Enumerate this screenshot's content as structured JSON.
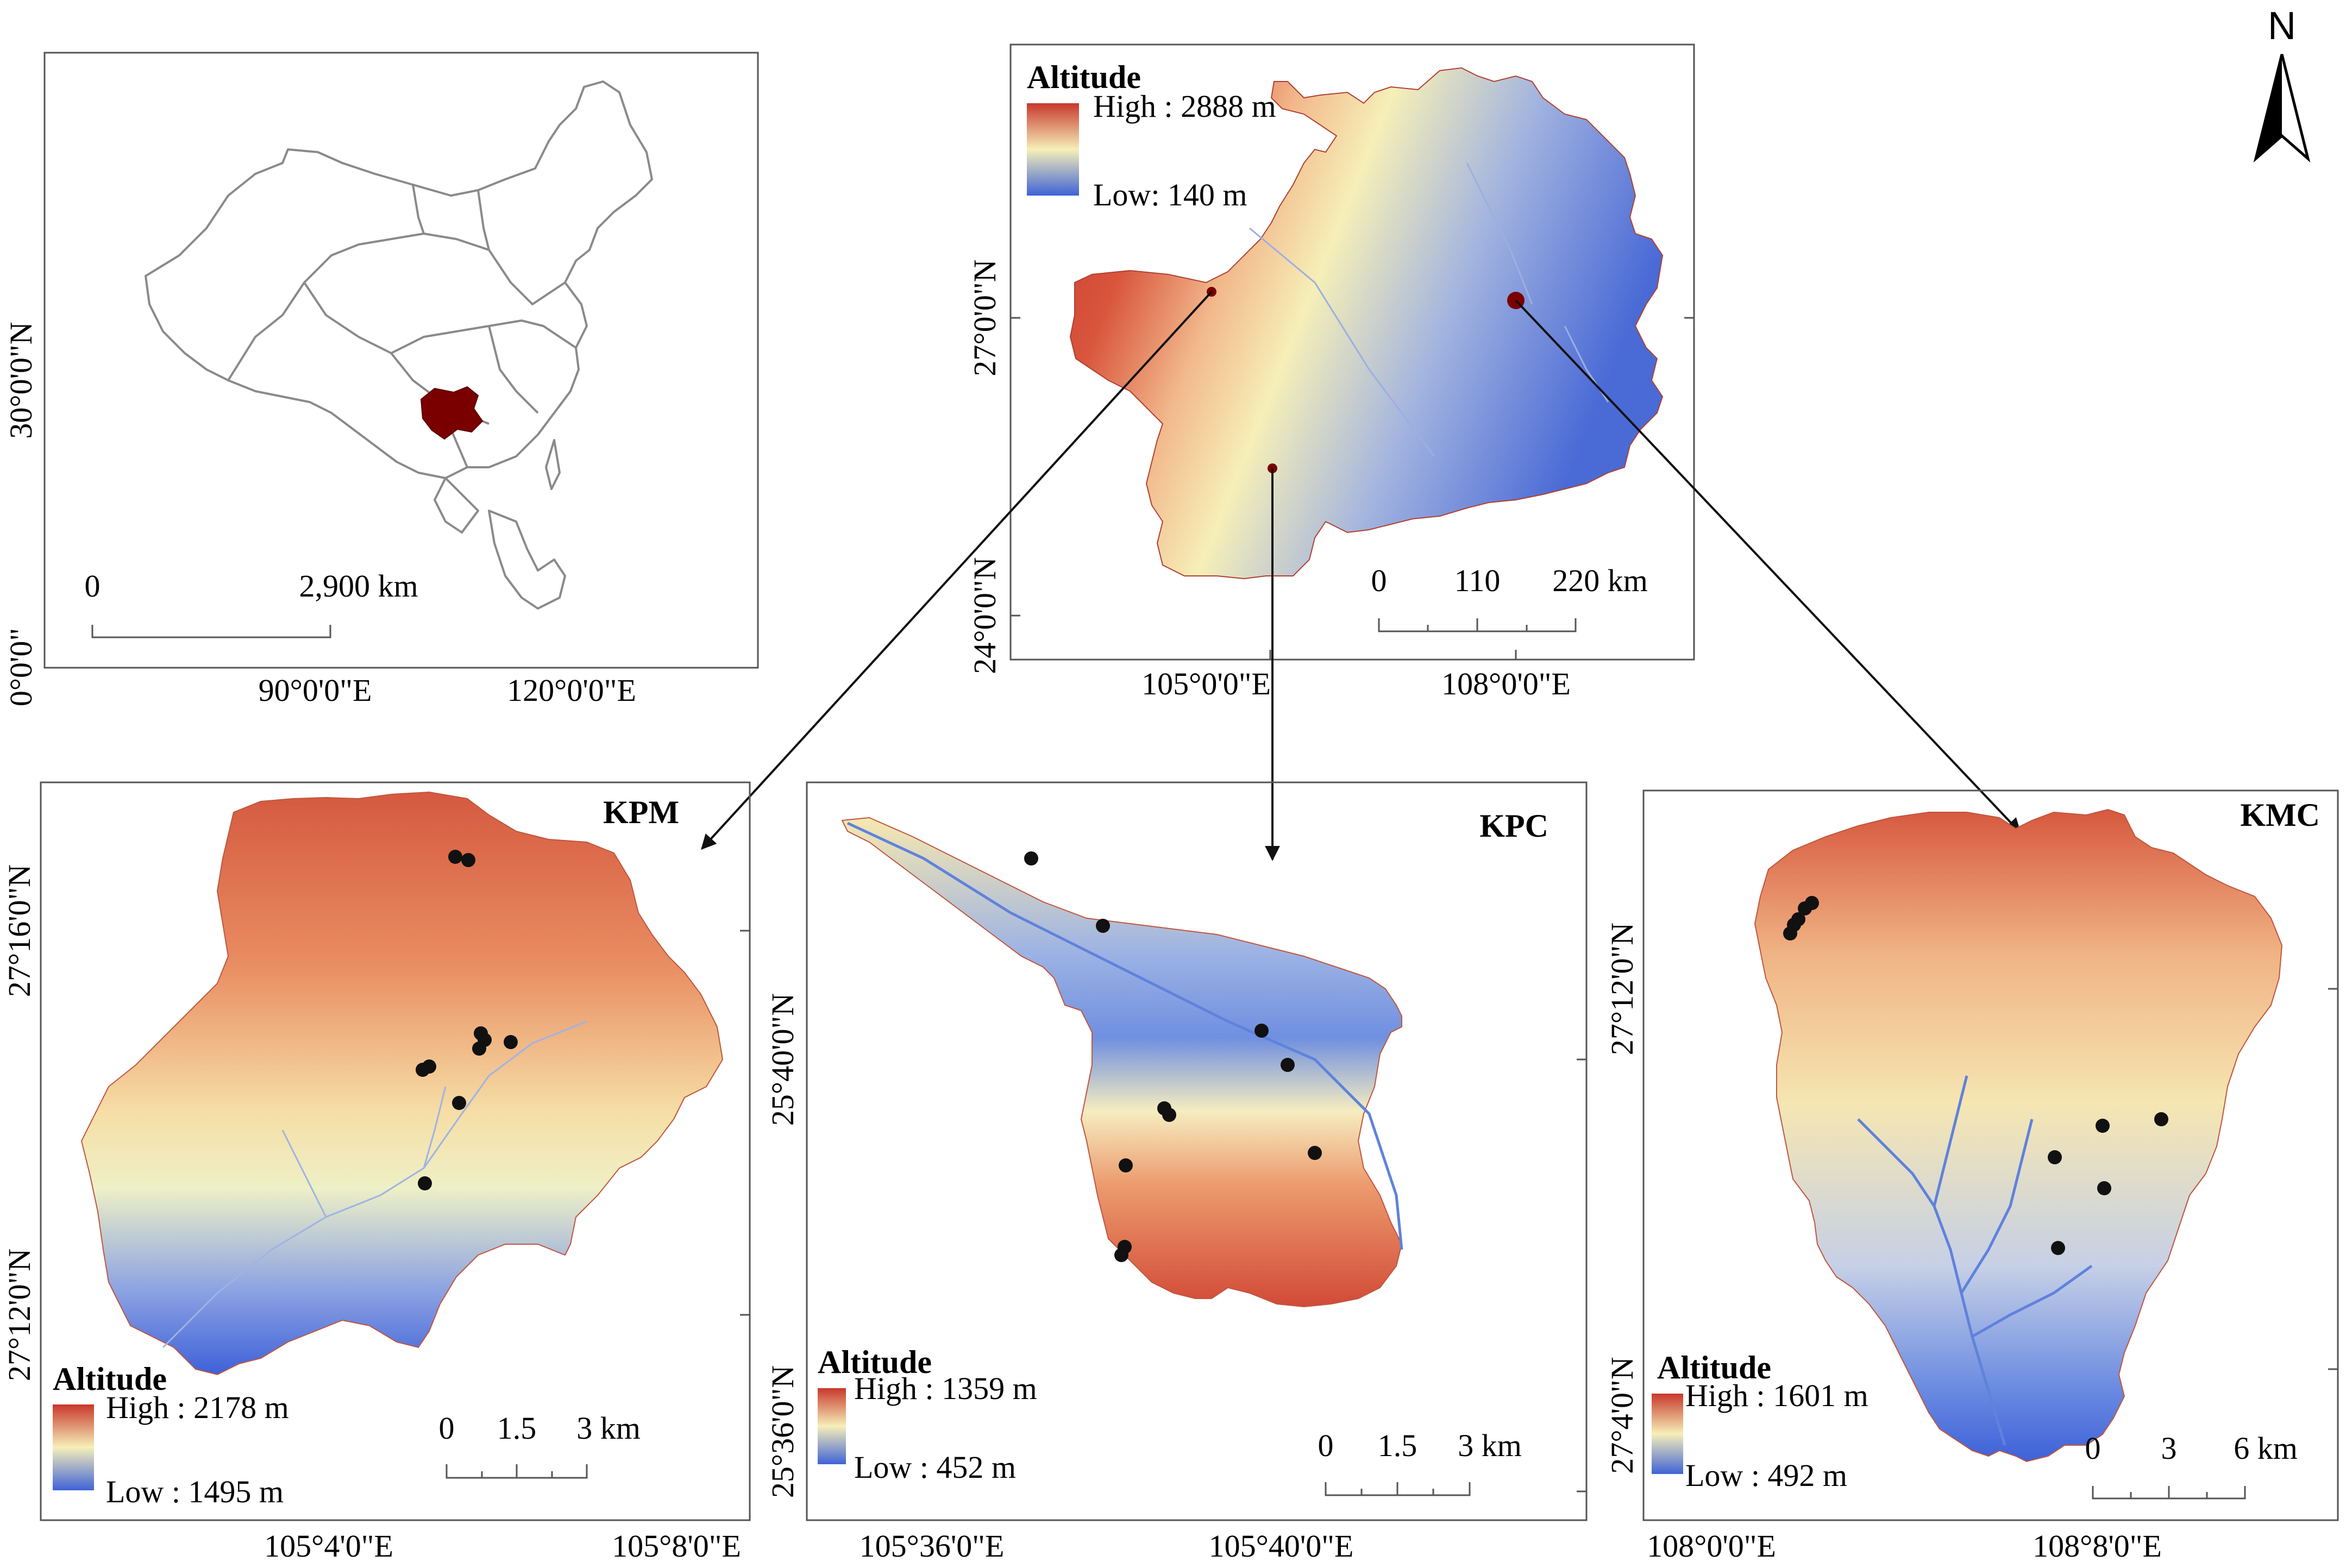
{
  "north_arrow": {
    "label": "N"
  },
  "colors": {
    "high": "#c8382c",
    "mid": "#f6efb8",
    "low": "#3f63d6",
    "study_area": "#7a0000"
  },
  "china_map": {
    "y_label_1": "30°0'0\"N",
    "y_label_2": "0°0'0\"",
    "x_label_1": "90°0'0\"E",
    "x_label_2": "120°0'0\"E",
    "scale": {
      "start": "0",
      "end": "2,900 km"
    },
    "highlight_icon": "guizhou-province-highlight"
  },
  "province_map": {
    "legend": {
      "title": "Altitude",
      "high": "High : 2888 m",
      "low": "Low: 140 m"
    },
    "y_label_1": "27°0'0\"N",
    "y_label_2": "24°0'0\"N",
    "x_label_1": "105°0'0\"E",
    "x_label_2": "108°0'0\"E",
    "scale": {
      "start": "0",
      "mid": "110",
      "end": "220 km"
    }
  },
  "panels": [
    {
      "name": "KPM",
      "legend": {
        "title": "Altitude",
        "high": "High : 2178 m",
        "low": "Low : 1495 m"
      },
      "y_label_1": "27°16'0\"N",
      "y_label_2": "27°12'0\"N",
      "x_label_1": "105°4'0\"E",
      "x_label_2": "105°8'0\"E",
      "scale": {
        "start": "0",
        "mid": "1.5",
        "end": "3 km"
      },
      "sample_points": 10
    },
    {
      "name": "KPC",
      "legend": {
        "title": "Altitude",
        "high": "High : 1359 m",
        "low": "Low : 452 m"
      },
      "y_label_1": "25°40'0\"N",
      "y_label_2": "25°36'0\"N",
      "x_label_1": "105°36'0\"E",
      "x_label_2": "105°40'0\"E",
      "scale": {
        "start": "0",
        "mid": "1.5",
        "end": "3 km"
      },
      "sample_points": 10
    },
    {
      "name": "KMC",
      "legend": {
        "title": "Altitude",
        "high": "High : 1601 m",
        "low": "Low : 492 m"
      },
      "y_label_1": "27°12'0\"N",
      "y_label_2": "27°4'0\"N",
      "x_label_1": "108°0'0\"E",
      "x_label_2": "108°8'0\"E",
      "scale": {
        "start": "0",
        "mid": "3",
        "end": "6 km"
      },
      "sample_points": 10
    }
  ]
}
